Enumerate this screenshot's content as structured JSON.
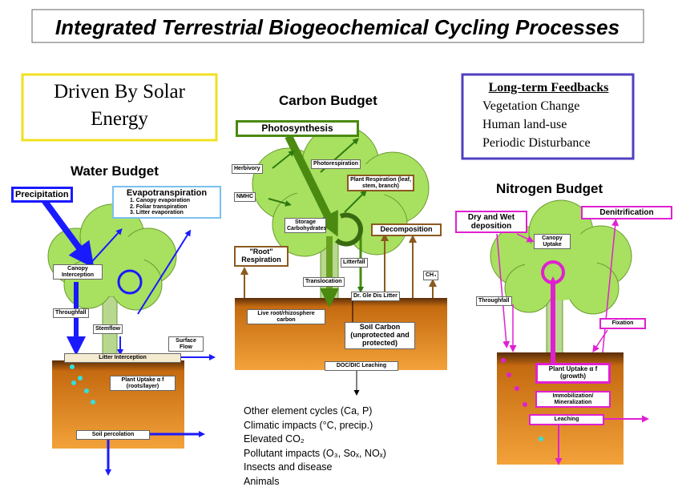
{
  "title": "Integrated Terrestrial Biogeochemical Cycling Processes",
  "solar_energy": "Driven By Solar Energy",
  "long_term_feedbacks": {
    "title": "Long-term Feedbacks",
    "items": [
      "Vegetation Change",
      "Human land-use",
      "Periodic Disturbance"
    ]
  },
  "water_budget": {
    "title": "Water Budget",
    "precipitation": "Precipitation",
    "evapotranspiration": {
      "title": "Evapotranspiration",
      "items": [
        "1. Canopy evaporation",
        "2. Foliar transpiration",
        "3. Litter evaporation"
      ]
    },
    "canopy_interception": "Canopy Interception",
    "throughfall": "Throughfall",
    "stemflow": "Stemflow",
    "litter_interception": "Litter Interception",
    "surface_flow": "Surface Flow",
    "plant_uptake": "Plant Uptake α f (roots/layer)",
    "soil_percolation": "Soil percolation"
  },
  "carbon_budget": {
    "title": "Carbon Budget",
    "photosynthesis": "Photosynthesis",
    "herbivory": "Herbivory",
    "photorespiration": "Photorespiration",
    "nmhc": "NMHC",
    "plant_respiration": "Plant Respiration (leaf, stem, branch)",
    "storage": "Storage Carbohydrates",
    "decomposition": "Decomposition",
    "root_respiration": "\"Root\" Respiration",
    "litterfall": "Litterfall",
    "translocation": "Translocation",
    "ch4": "CH₄",
    "litter": "Dr. Gle Dis Litter",
    "live_root": "Live root/rhizosphere carbon",
    "soil_carbon": "Soil Carbon (unprotected and protected)",
    "leaching": "DOC/DIC Leaching"
  },
  "nitrogen_budget": {
    "title": "Nitrogen Budget",
    "deposition": "Dry and Wet deposition",
    "denitrification": "Denitrification",
    "canopy_uptake": "Canopy Uptake",
    "throughfall": "Throughfall",
    "fixation": "Fixation",
    "plant_uptake": "Plant Uptake α f (growth)",
    "immobilization": "Immobilization/ Mineralization",
    "leaching": "Leaching"
  },
  "other_factors": [
    "Other element cycles (Ca, P)",
    "Climatic impacts (°C, precip.)",
    "Elevated CO₂",
    "Pollutant impacts (O₃, Soₓ, NOₓ)",
    "Insects and disease",
    "Animals"
  ]
}
